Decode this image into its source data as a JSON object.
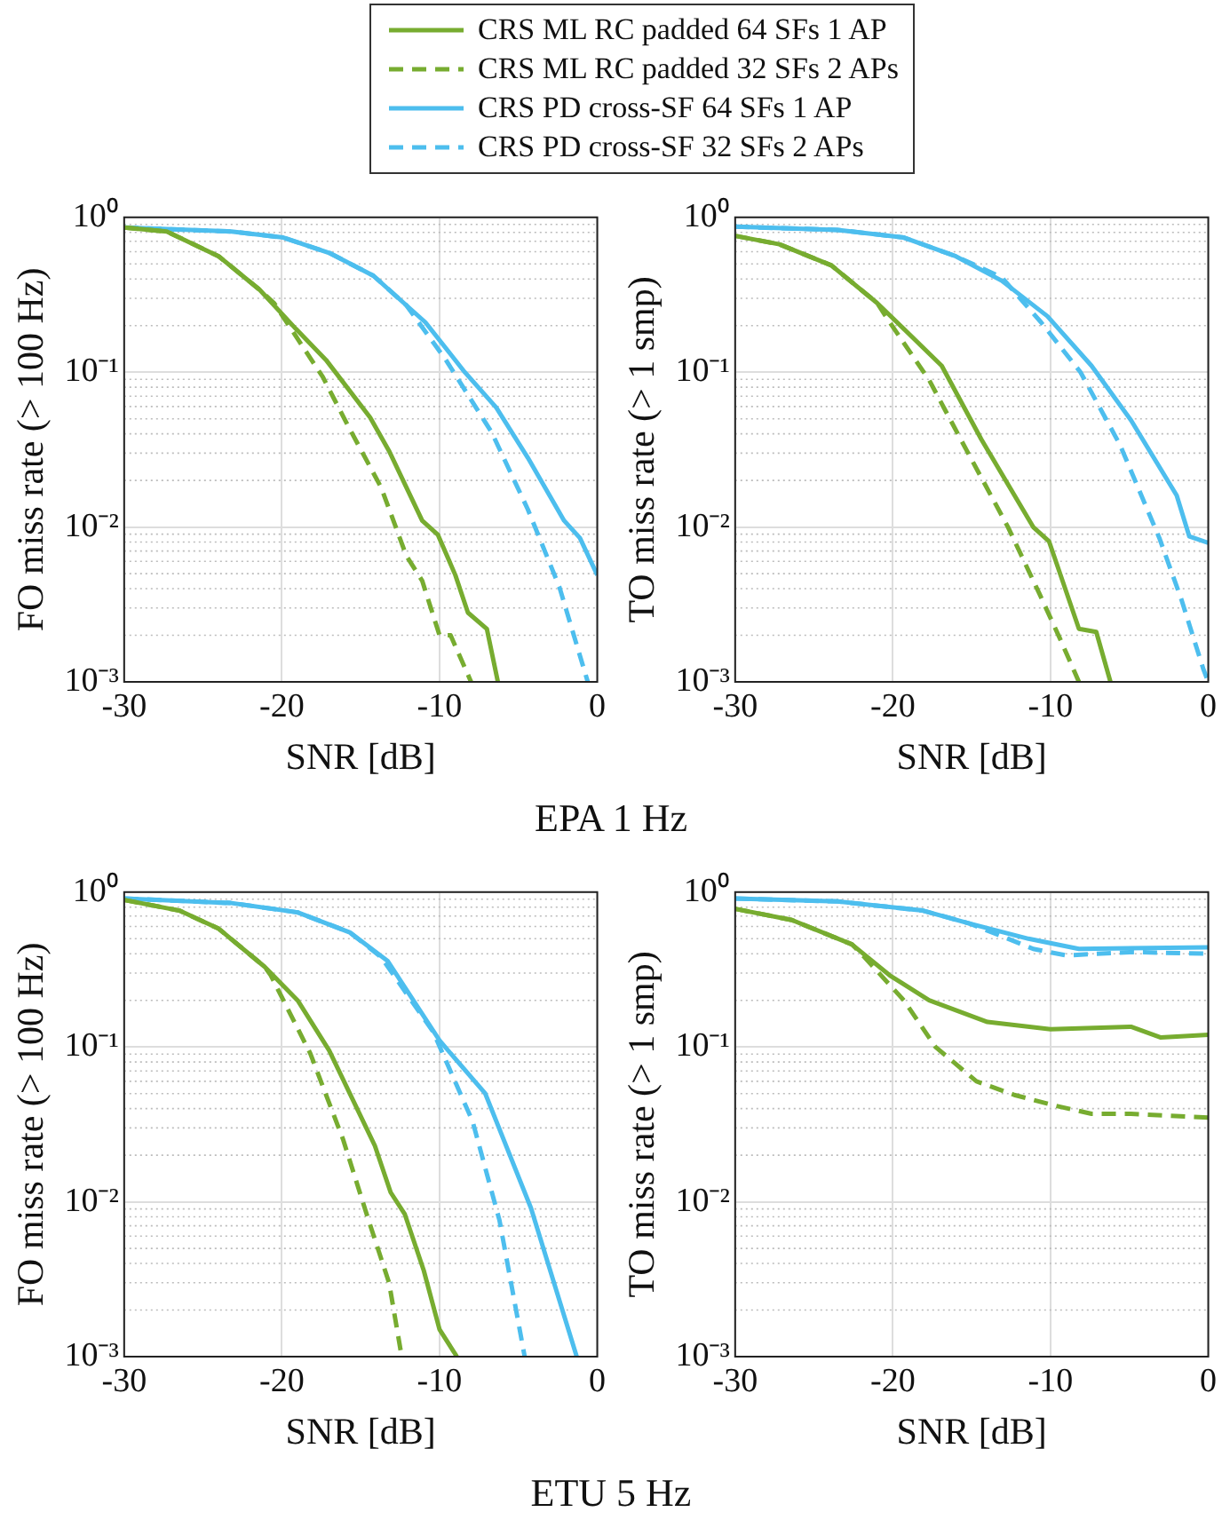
{
  "chart_data": [
    {
      "type": "line",
      "xlabel": "SNR [dB]",
      "ylabel": "FO miss rate (> 100 Hz)",
      "annotations": [
        "EPA 1 Hz"
      ],
      "legend": "top",
      "log": "y",
      "grid": true,
      "xlim": [
        -30,
        0
      ],
      "xticks": [
        -30,
        -20,
        -10,
        0
      ],
      "ylim": [
        0.001,
        1
      ],
      "yticks": [
        {
          "value": 0.001,
          "label": "10⁻³"
        },
        {
          "value": 0.01,
          "label": "10⁻²"
        },
        {
          "value": 0.1,
          "label": "10⁻¹"
        },
        {
          "value": 1,
          "label": "10⁰"
        }
      ],
      "series": [
        {
          "name": "CRS ML RC padded 64 SFs 1 AP",
          "color": "#77ac30",
          "line_style": "solid",
          "x": [
            -30,
            -27.3,
            -24,
            -21.4,
            -19.1,
            -17.2,
            -14.4,
            -13.2,
            -11.1,
            -10.1,
            -9,
            -8.2,
            -7,
            -6.3
          ],
          "values": [
            0.86,
            0.81,
            0.56,
            0.34,
            0.19,
            0.12,
            0.051,
            0.031,
            0.011,
            0.0089,
            0.0049,
            0.0028,
            0.0022,
            0.001
          ]
        },
        {
          "name": "CRS ML RC padded 32 SFs 2 APs",
          "color": "#77ac30",
          "line_style": "dashed",
          "x": [
            -30,
            -27.3,
            -24,
            -21.4,
            -20.5,
            -17.4,
            -15.8,
            -13.7,
            -12.1,
            -11.1,
            -10,
            -9.3,
            -8
          ],
          "values": [
            0.86,
            0.81,
            0.56,
            0.34,
            0.28,
            0.093,
            0.045,
            0.018,
            0.0065,
            0.0045,
            0.002,
            0.002,
            0.001
          ]
        },
        {
          "name": "CRS PD cross-SF 64 SFs 1 AP",
          "color": "#4dbeee",
          "line_style": "solid",
          "x": [
            -30,
            -23.2,
            -19.9,
            -17,
            -14.2,
            -10.9,
            -8.4,
            -6.4,
            -4.4,
            -2.1,
            -1.1,
            0
          ],
          "values": [
            0.86,
            0.81,
            0.74,
            0.59,
            0.42,
            0.21,
            0.1,
            0.059,
            0.028,
            0.011,
            0.0085,
            0.0049
          ]
        },
        {
          "name": "CRS PD cross-SF 32 SFs 2 APs",
          "color": "#4dbeee",
          "line_style": "dashed",
          "x": [
            -30,
            -23.2,
            -19.9,
            -17,
            -14.2,
            -12.1,
            -9.6,
            -6.7,
            -4.4,
            -2.4,
            -0.6
          ],
          "values": [
            0.86,
            0.81,
            0.74,
            0.59,
            0.42,
            0.27,
            0.12,
            0.041,
            0.013,
            0.0041,
            0.001
          ]
        }
      ]
    },
    {
      "type": "line",
      "xlabel": "SNR [dB]",
      "ylabel": "TO miss rate (> 1 smp)",
      "log": "y",
      "grid": true,
      "xlim": [
        -30,
        0
      ],
      "xticks": [
        -30,
        -20,
        -10,
        0
      ],
      "ylim": [
        0.001,
        1
      ],
      "yticks": [
        {
          "value": 0.001,
          "label": "10⁻³"
        },
        {
          "value": 0.01,
          "label": "10⁻²"
        },
        {
          "value": 0.1,
          "label": "10⁻¹"
        },
        {
          "value": 1,
          "label": "10⁰"
        }
      ],
      "series": [
        {
          "color": "#77ac30",
          "line_style": "solid",
          "x": [
            -30,
            -27.2,
            -23.9,
            -21,
            -16.9,
            -14.4,
            -11.1,
            -10.1,
            -8.2,
            -7.1,
            -6.2
          ],
          "values": [
            0.76,
            0.67,
            0.49,
            0.28,
            0.11,
            0.037,
            0.01,
            0.0081,
            0.0022,
            0.0021,
            0.001
          ]
        },
        {
          "color": "#77ac30",
          "line_style": "dashed",
          "x": [
            -30,
            -27.2,
            -23.9,
            -21,
            -20.2,
            -17.7,
            -15.3,
            -12.7,
            -10.7,
            -9.4,
            -8.2
          ],
          "values": [
            0.76,
            0.67,
            0.49,
            0.28,
            0.21,
            0.089,
            0.031,
            0.01,
            0.0037,
            0.0019,
            0.001
          ]
        },
        {
          "color": "#4dbeee",
          "line_style": "solid",
          "x": [
            -30,
            -23.5,
            -19.3,
            -16,
            -13.1,
            -10.2,
            -7.4,
            -4.9,
            -2,
            -1.2,
            0
          ],
          "values": [
            0.87,
            0.83,
            0.74,
            0.56,
            0.39,
            0.23,
            0.11,
            0.049,
            0.016,
            0.0087,
            0.0079
          ]
        },
        {
          "color": "#4dbeee",
          "line_style": "dashed",
          "x": [
            -30,
            -23.5,
            -19.3,
            -16,
            -13.1,
            -10.6,
            -8.1,
            -5.6,
            -3.1,
            -1.7,
            -0.3,
            0
          ],
          "values": [
            0.87,
            0.83,
            0.74,
            0.56,
            0.41,
            0.21,
            0.1,
            0.034,
            0.0085,
            0.0034,
            0.0012,
            0.001
          ]
        }
      ]
    },
    {
      "type": "line",
      "xlabel": "SNR [dB]",
      "ylabel": "FO miss rate (> 100 Hz)",
      "annotations": [
        "ETU 5 Hz"
      ],
      "log": "y",
      "grid": true,
      "xlim": [
        -30,
        0
      ],
      "xticks": [
        -30,
        -20,
        -10,
        0
      ],
      "ylim": [
        0.001,
        1
      ],
      "yticks": [
        {
          "value": 0.001,
          "label": "10⁻³"
        },
        {
          "value": 0.01,
          "label": "10⁻²"
        },
        {
          "value": 0.1,
          "label": "10⁻¹"
        },
        {
          "value": 1,
          "label": "10⁰"
        }
      ],
      "series": [
        {
          "color": "#77ac30",
          "line_style": "solid",
          "x": [
            -30,
            -26.5,
            -24,
            -21.1,
            -19,
            -17,
            -14.1,
            -13.1,
            -12.2,
            -11,
            -10,
            -8.9
          ],
          "values": [
            0.89,
            0.76,
            0.58,
            0.33,
            0.2,
            0.095,
            0.023,
            0.0115,
            0.0083,
            0.0036,
            0.0015,
            0.001
          ]
        },
        {
          "color": "#77ac30",
          "line_style": "dashed",
          "x": [
            -30,
            -26.5,
            -24,
            -21.1,
            -20.7,
            -18.2,
            -16.1,
            -14.5,
            -13.2,
            -12.4
          ],
          "values": [
            0.89,
            0.76,
            0.58,
            0.33,
            0.29,
            0.091,
            0.025,
            0.0076,
            0.003,
            0.001
          ]
        },
        {
          "color": "#4dbeee",
          "line_style": "solid",
          "x": [
            -30,
            -23.2,
            -19,
            -15.7,
            -13.3,
            -10,
            -7.1,
            -4.2,
            -1.3
          ],
          "values": [
            0.91,
            0.85,
            0.74,
            0.55,
            0.36,
            0.11,
            0.05,
            0.0091,
            0.001
          ]
        },
        {
          "color": "#4dbeee",
          "line_style": "dashed",
          "x": [
            -30,
            -23.2,
            -19,
            -15.7,
            -13.7,
            -10.4,
            -7.9,
            -6.2,
            -4.6
          ],
          "values": [
            0.91,
            0.85,
            0.74,
            0.55,
            0.38,
            0.125,
            0.033,
            0.0076,
            0.001
          ]
        }
      ]
    },
    {
      "type": "line",
      "xlabel": "SNR [dB]",
      "ylabel": "TO miss rate (> 1 smp)",
      "log": "y",
      "grid": true,
      "xlim": [
        -30,
        0
      ],
      "xticks": [
        -30,
        -20,
        -10,
        0
      ],
      "ylim": [
        0.001,
        1
      ],
      "yticks": [
        {
          "value": 0.001,
          "label": "10⁻³"
        },
        {
          "value": 0.01,
          "label": "10⁻²"
        },
        {
          "value": 0.1,
          "label": "10⁻¹"
        },
        {
          "value": 1,
          "label": "10⁰"
        }
      ],
      "series": [
        {
          "color": "#77ac30",
          "line_style": "solid",
          "x": [
            -30,
            -26.4,
            -22.6,
            -20.2,
            -17.7,
            -14,
            -10,
            -4.9,
            -3,
            0
          ],
          "values": [
            0.78,
            0.66,
            0.46,
            0.29,
            0.2,
            0.145,
            0.13,
            0.135,
            0.115,
            0.12
          ]
        },
        {
          "color": "#77ac30",
          "line_style": "dashed",
          "x": [
            -30,
            -26.4,
            -22.6,
            -21.8,
            -19.3,
            -17.3,
            -14.7,
            -12.3,
            -9.8,
            -7.4,
            -4.9,
            0
          ],
          "values": [
            0.78,
            0.66,
            0.46,
            0.38,
            0.2,
            0.1,
            0.06,
            0.049,
            0.042,
            0.037,
            0.037,
            0.035
          ]
        },
        {
          "color": "#4dbeee",
          "line_style": "solid",
          "x": [
            -30,
            -23.5,
            -18.1,
            -15.2,
            -11.4,
            -8.2,
            0
          ],
          "values": [
            0.91,
            0.87,
            0.76,
            0.63,
            0.5,
            0.43,
            0.44
          ]
        },
        {
          "color": "#4dbeee",
          "line_style": "dashed",
          "x": [
            -30,
            -23.5,
            -18.1,
            -15.2,
            -13.1,
            -11.1,
            -9,
            -4.9,
            0
          ],
          "values": [
            0.91,
            0.87,
            0.76,
            0.63,
            0.52,
            0.43,
            0.39,
            0.41,
            0.4
          ]
        }
      ]
    }
  ]
}
